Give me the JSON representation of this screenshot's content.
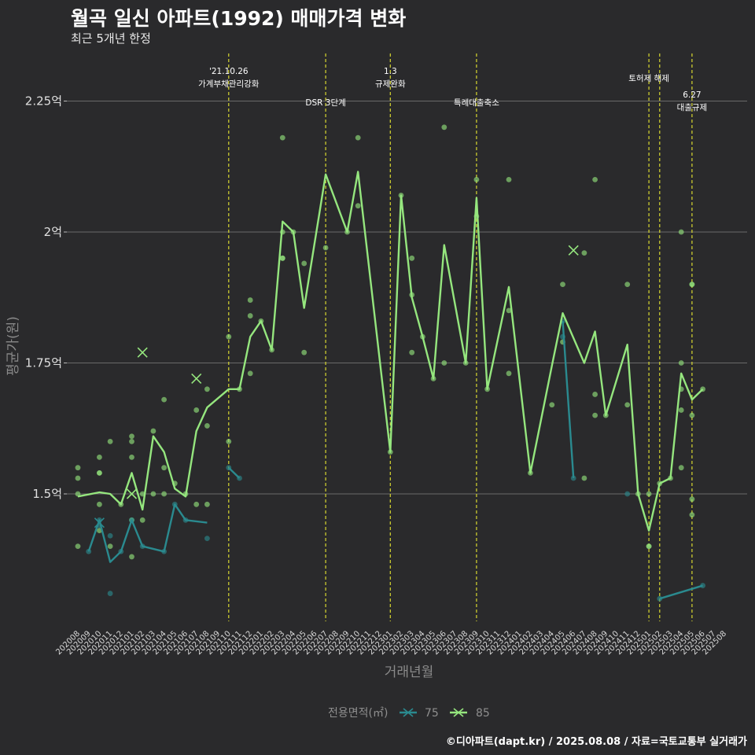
{
  "chart_data": {
    "type": "line",
    "title": "월곡 일신 아파트(1992) 매매가격 변화",
    "subtitle": "최근 5개년 한정",
    "xlabel": "거래년월",
    "ylabel": "평균가(원)",
    "caption": "©디아파트(dapt.kr) / 2025.08.08 / 자료=국토교통부 실거래가",
    "legend": {
      "title": "전용면적(㎡)",
      "position": "bottom"
    },
    "y_ticks": [
      {
        "value": 1.5,
        "label": "1.5억"
      },
      {
        "value": 1.75,
        "label": "1.75억"
      },
      {
        "value": 2.0,
        "label": "2억"
      },
      {
        "value": 2.25,
        "label": "2.25억"
      }
    ],
    "ylim": [
      1.25,
      2.25
    ],
    "x_categories": [
      "202008",
      "202009",
      "202010",
      "202011",
      "202012",
      "202101",
      "202102",
      "202103",
      "202104",
      "202105",
      "202106",
      "202107",
      "202108",
      "202109",
      "202110",
      "202111",
      "202112",
      "202201",
      "202202",
      "202203",
      "202204",
      "202205",
      "202206",
      "202207",
      "202208",
      "202209",
      "202210",
      "202211",
      "202212",
      "202301",
      "202302",
      "202303",
      "202304",
      "202305",
      "202306",
      "202307",
      "202308",
      "202309",
      "202310",
      "202311",
      "202312",
      "202401",
      "202402",
      "202403",
      "202404",
      "202405",
      "202406",
      "202407",
      "202408",
      "202409",
      "202410",
      "202411",
      "202412",
      "202501",
      "202502",
      "202503",
      "202504",
      "202505",
      "202506",
      "202507",
      "202508"
    ],
    "series": [
      {
        "name": "75",
        "color": "#2a8a8f",
        "line": [
          [
            1,
            1.39
          ],
          [
            2,
            1.45
          ],
          [
            3,
            1.37
          ],
          [
            4,
            1.39
          ],
          [
            5,
            1.45
          ],
          [
            6,
            1.4
          ],
          [
            8,
            1.39
          ],
          [
            9,
            1.48
          ],
          [
            10,
            1.45
          ],
          [
            12,
            1.445
          ],
          [
            null,
            null
          ],
          [
            14,
            1.55
          ],
          [
            15,
            1.53
          ],
          [
            null,
            null
          ],
          [
            45,
            1.83
          ],
          [
            46,
            1.53
          ],
          [
            null,
            null
          ],
          [
            54,
            1.3
          ],
          [
            58,
            1.325
          ]
        ],
        "points": [
          [
            1,
            1.39
          ],
          [
            2,
            1.45
          ],
          [
            2,
            1.44
          ],
          [
            3,
            1.42
          ],
          [
            3,
            1.31
          ],
          [
            4,
            1.39
          ],
          [
            5,
            1.45
          ],
          [
            6,
            1.4
          ],
          [
            8,
            1.39
          ],
          [
            9,
            1.48
          ],
          [
            10,
            1.45
          ],
          [
            12,
            1.415
          ],
          [
            14,
            1.55
          ],
          [
            15,
            1.53
          ],
          [
            45,
            1.83
          ],
          [
            45,
            1.8
          ],
          [
            46,
            1.53
          ],
          [
            51,
            1.5
          ],
          [
            54,
            1.3
          ],
          [
            58,
            1.325
          ]
        ]
      },
      {
        "name": "85",
        "color": "#95e67e",
        "line": [
          [
            0,
            1.495
          ],
          [
            2,
            1.503
          ],
          [
            3,
            1.5
          ],
          [
            4,
            1.48
          ],
          [
            5,
            1.54
          ],
          [
            6,
            1.47
          ],
          [
            7,
            1.61
          ],
          [
            8,
            1.58
          ],
          [
            9,
            1.51
          ],
          [
            10,
            1.495
          ],
          [
            11,
            1.62
          ],
          [
            12,
            1.665
          ],
          [
            14,
            1.7
          ],
          [
            15,
            1.7
          ],
          [
            16,
            1.8
          ],
          [
            17,
            1.83
          ],
          [
            18,
            1.775
          ],
          [
            19,
            2.02
          ],
          [
            20,
            2.0
          ],
          [
            21,
            1.855
          ],
          [
            23,
            2.11
          ],
          [
            25,
            2.0
          ],
          [
            26,
            2.115
          ],
          [
            29,
            1.58
          ],
          [
            30,
            2.07
          ],
          [
            31,
            1.875
          ],
          [
            32,
            1.8
          ],
          [
            33,
            1.72
          ],
          [
            34,
            1.975
          ],
          [
            36,
            1.75
          ],
          [
            37,
            2.065
          ],
          [
            38,
            1.7
          ],
          [
            40,
            1.895
          ],
          [
            42,
            1.54
          ],
          [
            44,
            1.745
          ],
          [
            45,
            1.845
          ],
          [
            47,
            1.75
          ],
          [
            48,
            1.81
          ],
          [
            49,
            1.65
          ],
          [
            51,
            1.785
          ],
          [
            52,
            1.5
          ],
          [
            53,
            1.43
          ],
          [
            54,
            1.52
          ],
          [
            55,
            1.53
          ],
          [
            56,
            1.73
          ],
          [
            57,
            1.68
          ],
          [
            58,
            1.7
          ]
        ],
        "points": [
          [
            0,
            1.55
          ],
          [
            0,
            1.53
          ],
          [
            0,
            1.5
          ],
          [
            0,
            1.4
          ],
          [
            2,
            1.57
          ],
          [
            2,
            1.54
          ],
          [
            2,
            1.54
          ],
          [
            2,
            1.48
          ],
          [
            2,
            1.43
          ],
          [
            3,
            1.6
          ],
          [
            3,
            1.4
          ],
          [
            4,
            1.48
          ],
          [
            5,
            1.61
          ],
          [
            5,
            1.6
          ],
          [
            5,
            1.57
          ],
          [
            5,
            1.45
          ],
          [
            5,
            1.38
          ],
          [
            6,
            1.5
          ],
          [
            6,
            1.45
          ],
          [
            7,
            1.62
          ],
          [
            7,
            1.5
          ],
          [
            8,
            1.68
          ],
          [
            8,
            1.55
          ],
          [
            8,
            1.5
          ],
          [
            9,
            1.52
          ],
          [
            10,
            1.5
          ],
          [
            11,
            1.66
          ],
          [
            11,
            1.48
          ],
          [
            12,
            1.7
          ],
          [
            12,
            1.63
          ],
          [
            12,
            1.48
          ],
          [
            14,
            1.8
          ],
          [
            14,
            1.6
          ],
          [
            15,
            1.7
          ],
          [
            16,
            1.87
          ],
          [
            16,
            1.84
          ],
          [
            16,
            1.73
          ],
          [
            17,
            1.83
          ],
          [
            18,
            1.775
          ],
          [
            19,
            2.18
          ],
          [
            19,
            2.0
          ],
          [
            19,
            1.95
          ],
          [
            19,
            1.95
          ],
          [
            20,
            2.0
          ],
          [
            21,
            1.94
          ],
          [
            21,
            1.77
          ],
          [
            23,
            1.97
          ],
          [
            25,
            2.0
          ],
          [
            26,
            2.18
          ],
          [
            26,
            2.05
          ],
          [
            29,
            1.58
          ],
          [
            30,
            2.07
          ],
          [
            31,
            1.95
          ],
          [
            31,
            1.88
          ],
          [
            31,
            1.77
          ],
          [
            32,
            1.8
          ],
          [
            33,
            1.72
          ],
          [
            34,
            2.2
          ],
          [
            34,
            1.75
          ],
          [
            36,
            1.75
          ],
          [
            37,
            2.1
          ],
          [
            37,
            2.03
          ],
          [
            38,
            1.7
          ],
          [
            40,
            2.1
          ],
          [
            40,
            1.85
          ],
          [
            40,
            1.73
          ],
          [
            42,
            1.54
          ],
          [
            44,
            1.67
          ],
          [
            45,
            1.9
          ],
          [
            45,
            1.79
          ],
          [
            47,
            1.96
          ],
          [
            47,
            1.53
          ],
          [
            48,
            2.1
          ],
          [
            48,
            1.69
          ],
          [
            48,
            1.65
          ],
          [
            49,
            1.65
          ],
          [
            51,
            1.9
          ],
          [
            51,
            1.67
          ],
          [
            52,
            1.5
          ],
          [
            53,
            1.5
          ],
          [
            53,
            1.4
          ],
          [
            53,
            1.4
          ],
          [
            54,
            1.52
          ],
          [
            55,
            1.53
          ],
          [
            56,
            2.0
          ],
          [
            56,
            1.75
          ],
          [
            56,
            1.7
          ],
          [
            56,
            1.66
          ],
          [
            56,
            1.55
          ],
          [
            57,
            1.9
          ],
          [
            57,
            1.9
          ],
          [
            57,
            1.65
          ],
          [
            57,
            1.49
          ],
          [
            57,
            1.46
          ],
          [
            58,
            1.7
          ]
        ],
        "markers": [
          [
            6,
            1.77
          ],
          [
            11,
            1.72
          ],
          [
            5,
            1.5
          ],
          [
            46,
            1.965
          ]
        ]
      }
    ],
    "markers_75": [
      [
        2,
        1.445
      ]
    ],
    "events": [
      {
        "x": 14,
        "lines": [
          "'21.10.26",
          "가계부채관리강화"
        ],
        "row": "top"
      },
      {
        "x": 23,
        "lines": [
          "DSR 3단계"
        ],
        "row": "low"
      },
      {
        "x": 29,
        "lines": [
          "1.3",
          "규제완화"
        ],
        "row": "top"
      },
      {
        "x": 37,
        "lines": [
          "특례대출축소"
        ],
        "row": "low"
      },
      {
        "x": 53,
        "lines": [
          "토허제 해제"
        ],
        "row": "mid"
      },
      {
        "x": 54,
        "lines": [],
        "row": "none"
      },
      {
        "x": 57,
        "lines": [
          "6.27",
          "대출규제"
        ],
        "row": "low2"
      }
    ]
  }
}
